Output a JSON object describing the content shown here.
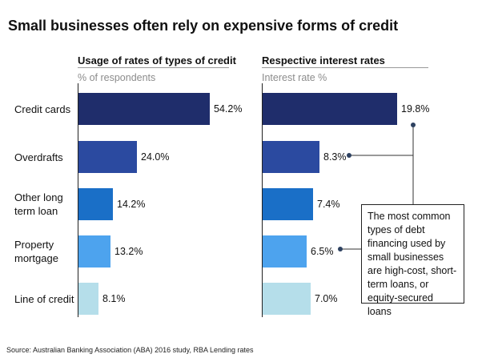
{
  "title": "Small businesses often rely on expensive forms of credit",
  "source": "Source: Australian Banking Association (ABA) 2016 study, RBA Lending rates",
  "callout": "The most common types of debt financing used by small businesses are high-cost, short-term loans, or equity-secured loans",
  "chart_data": [
    {
      "type": "bar",
      "orientation": "horizontal",
      "title": "Usage of rates of types of credit",
      "subtitle": "% of respondents",
      "categories": [
        "Credit cards",
        "Overdrafts",
        "Other long term loan",
        "Property mortgage",
        "Line of credit"
      ],
      "values": [
        54.2,
        24.0,
        14.2,
        13.2,
        8.1
      ],
      "labels": [
        "54.2%",
        "24.0%",
        "14.2%",
        "13.2%",
        "8.1%"
      ],
      "colors": [
        "#1f2d6b",
        "#2b4aa0",
        "#1a6fc7",
        "#4da3ee",
        "#b5deea"
      ],
      "xlim": [
        0,
        100
      ]
    },
    {
      "type": "bar",
      "orientation": "horizontal",
      "title": "Respective interest rates",
      "subtitle": "Interest rate %",
      "categories": [
        "Credit cards",
        "Overdrafts",
        "Other long term loan",
        "Property mortgage",
        "Line of credit"
      ],
      "values": [
        19.8,
        8.3,
        7.4,
        6.5,
        7.0
      ],
      "labels": [
        "19.8%",
        "8.3%",
        "7.4%",
        "6.5%",
        "7.0%"
      ],
      "colors": [
        "#1f2d6b",
        "#2b4aa0",
        "#1a6fc7",
        "#4da3ee",
        "#b5deea"
      ],
      "xlim": [
        0,
        25
      ]
    }
  ]
}
